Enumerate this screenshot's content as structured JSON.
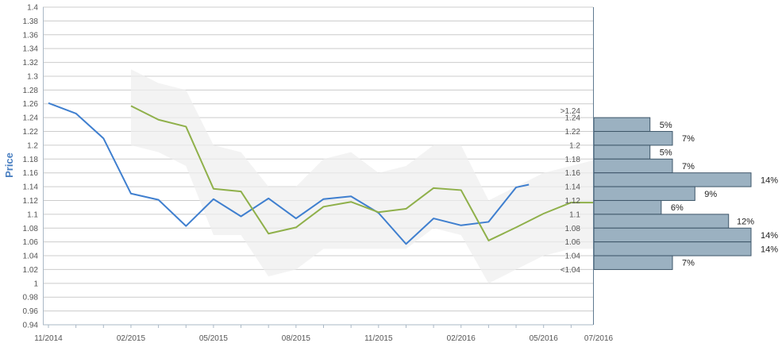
{
  "chart_data": {
    "type": "line",
    "ylabel": "Price",
    "ylim": [
      0.94,
      1.4
    ],
    "y_ticks": [
      "0.94",
      "0.96",
      "0.98",
      "1",
      "1.02",
      "1.04",
      "1.06",
      "1.08",
      "1.1",
      "1.12",
      "1.14",
      "1.16",
      "1.18",
      "1.2",
      "1.22",
      "1.24",
      "1.26",
      "1.28",
      "1.3",
      "1.32",
      "1.34",
      "1.36",
      "1.38",
      "1.4"
    ],
    "x_ticks": [
      "11/2014",
      "02/2015",
      "05/2015",
      "08/2015",
      "11/2015",
      "02/2016",
      "05/2016",
      "07/2016"
    ],
    "grid": true,
    "series": [
      {
        "color": "#3f7fcf",
        "x": [
          "2014-11",
          "2014-12",
          "2015-01",
          "2015-02",
          "2015-03",
          "2015-04",
          "2015-05",
          "2015-06",
          "2015-07",
          "2015-08",
          "2015-09",
          "2015-10",
          "2015-11",
          "2015-12",
          "2016-01",
          "2016-02",
          "2016-03",
          "2016-04",
          "2016-04-15"
        ],
        "y": [
          1.261,
          1.246,
          1.21,
          1.13,
          1.121,
          1.083,
          1.122,
          1.097,
          1.123,
          1.094,
          1.122,
          1.126,
          1.102,
          1.057,
          1.094,
          1.084,
          1.089,
          1.139,
          1.143
        ]
      },
      {
        "color": "#8fb04a",
        "x": [
          "2015-02",
          "2015-03",
          "2015-04",
          "2015-05",
          "2015-06",
          "2015-07",
          "2015-08",
          "2015-09",
          "2015-10",
          "2015-11",
          "2015-12",
          "2016-01",
          "2016-02",
          "2016-03",
          "2016-04",
          "2016-05",
          "2016-06",
          "2016-07"
        ],
        "y": [
          1.257,
          1.237,
          1.227,
          1.137,
          1.133,
          1.072,
          1.081,
          1.111,
          1.118,
          1.103,
          1.108,
          1.138,
          1.135,
          1.062,
          1.081,
          1.101,
          1.117,
          1.117
        ]
      }
    ],
    "band": {
      "color": "#eeeeee",
      "x": [
        "2015-02",
        "2015-03",
        "2015-04",
        "2015-05",
        "2015-06",
        "2015-07",
        "2015-08",
        "2015-09",
        "2015-10",
        "2015-11",
        "2015-12",
        "2016-01",
        "2016-02",
        "2016-03",
        "2016-04",
        "2016-05",
        "2016-06",
        "2016-07"
      ],
      "upper": [
        1.31,
        1.29,
        1.28,
        1.2,
        1.19,
        1.14,
        1.14,
        1.18,
        1.19,
        1.16,
        1.17,
        1.2,
        1.2,
        1.12,
        1.14,
        1.16,
        1.17,
        1.18
      ],
      "lower": [
        1.2,
        1.19,
        1.17,
        1.07,
        1.07,
        1.01,
        1.02,
        1.05,
        1.05,
        1.05,
        1.05,
        1.08,
        1.07,
        1.0,
        1.02,
        1.04,
        1.05,
        1.05
      ]
    },
    "histogram": {
      "color": "#9bb1c1",
      "bins": [
        {
          "label": ">1.24",
          "percent": "5%",
          "value": 5
        },
        {
          "label": "1.24",
          "percent": "7%",
          "value": 7
        },
        {
          "label": "1.22",
          "percent": "5%",
          "value": 5
        },
        {
          "label": "1.2",
          "percent": "7%",
          "value": 7
        },
        {
          "label": "1.18",
          "percent": "14%",
          "value": 14
        },
        {
          "label": "1.16",
          "percent": "9%",
          "value": 9
        },
        {
          "label": "1.14",
          "percent": "6%",
          "value": 6
        },
        {
          "label": "1.12",
          "percent": "12%",
          "value": 12
        },
        {
          "label": "1.1",
          "percent": "14%",
          "value": 14
        },
        {
          "label": "1.08",
          "percent": "14%",
          "value": 14
        },
        {
          "label": "1.06",
          "percent": "7%",
          "value": 7
        },
        {
          "label": "1.04",
          "percent": "",
          "value": 0
        },
        {
          "label": "<1.04",
          "percent": "",
          "value": 0
        }
      ]
    }
  }
}
